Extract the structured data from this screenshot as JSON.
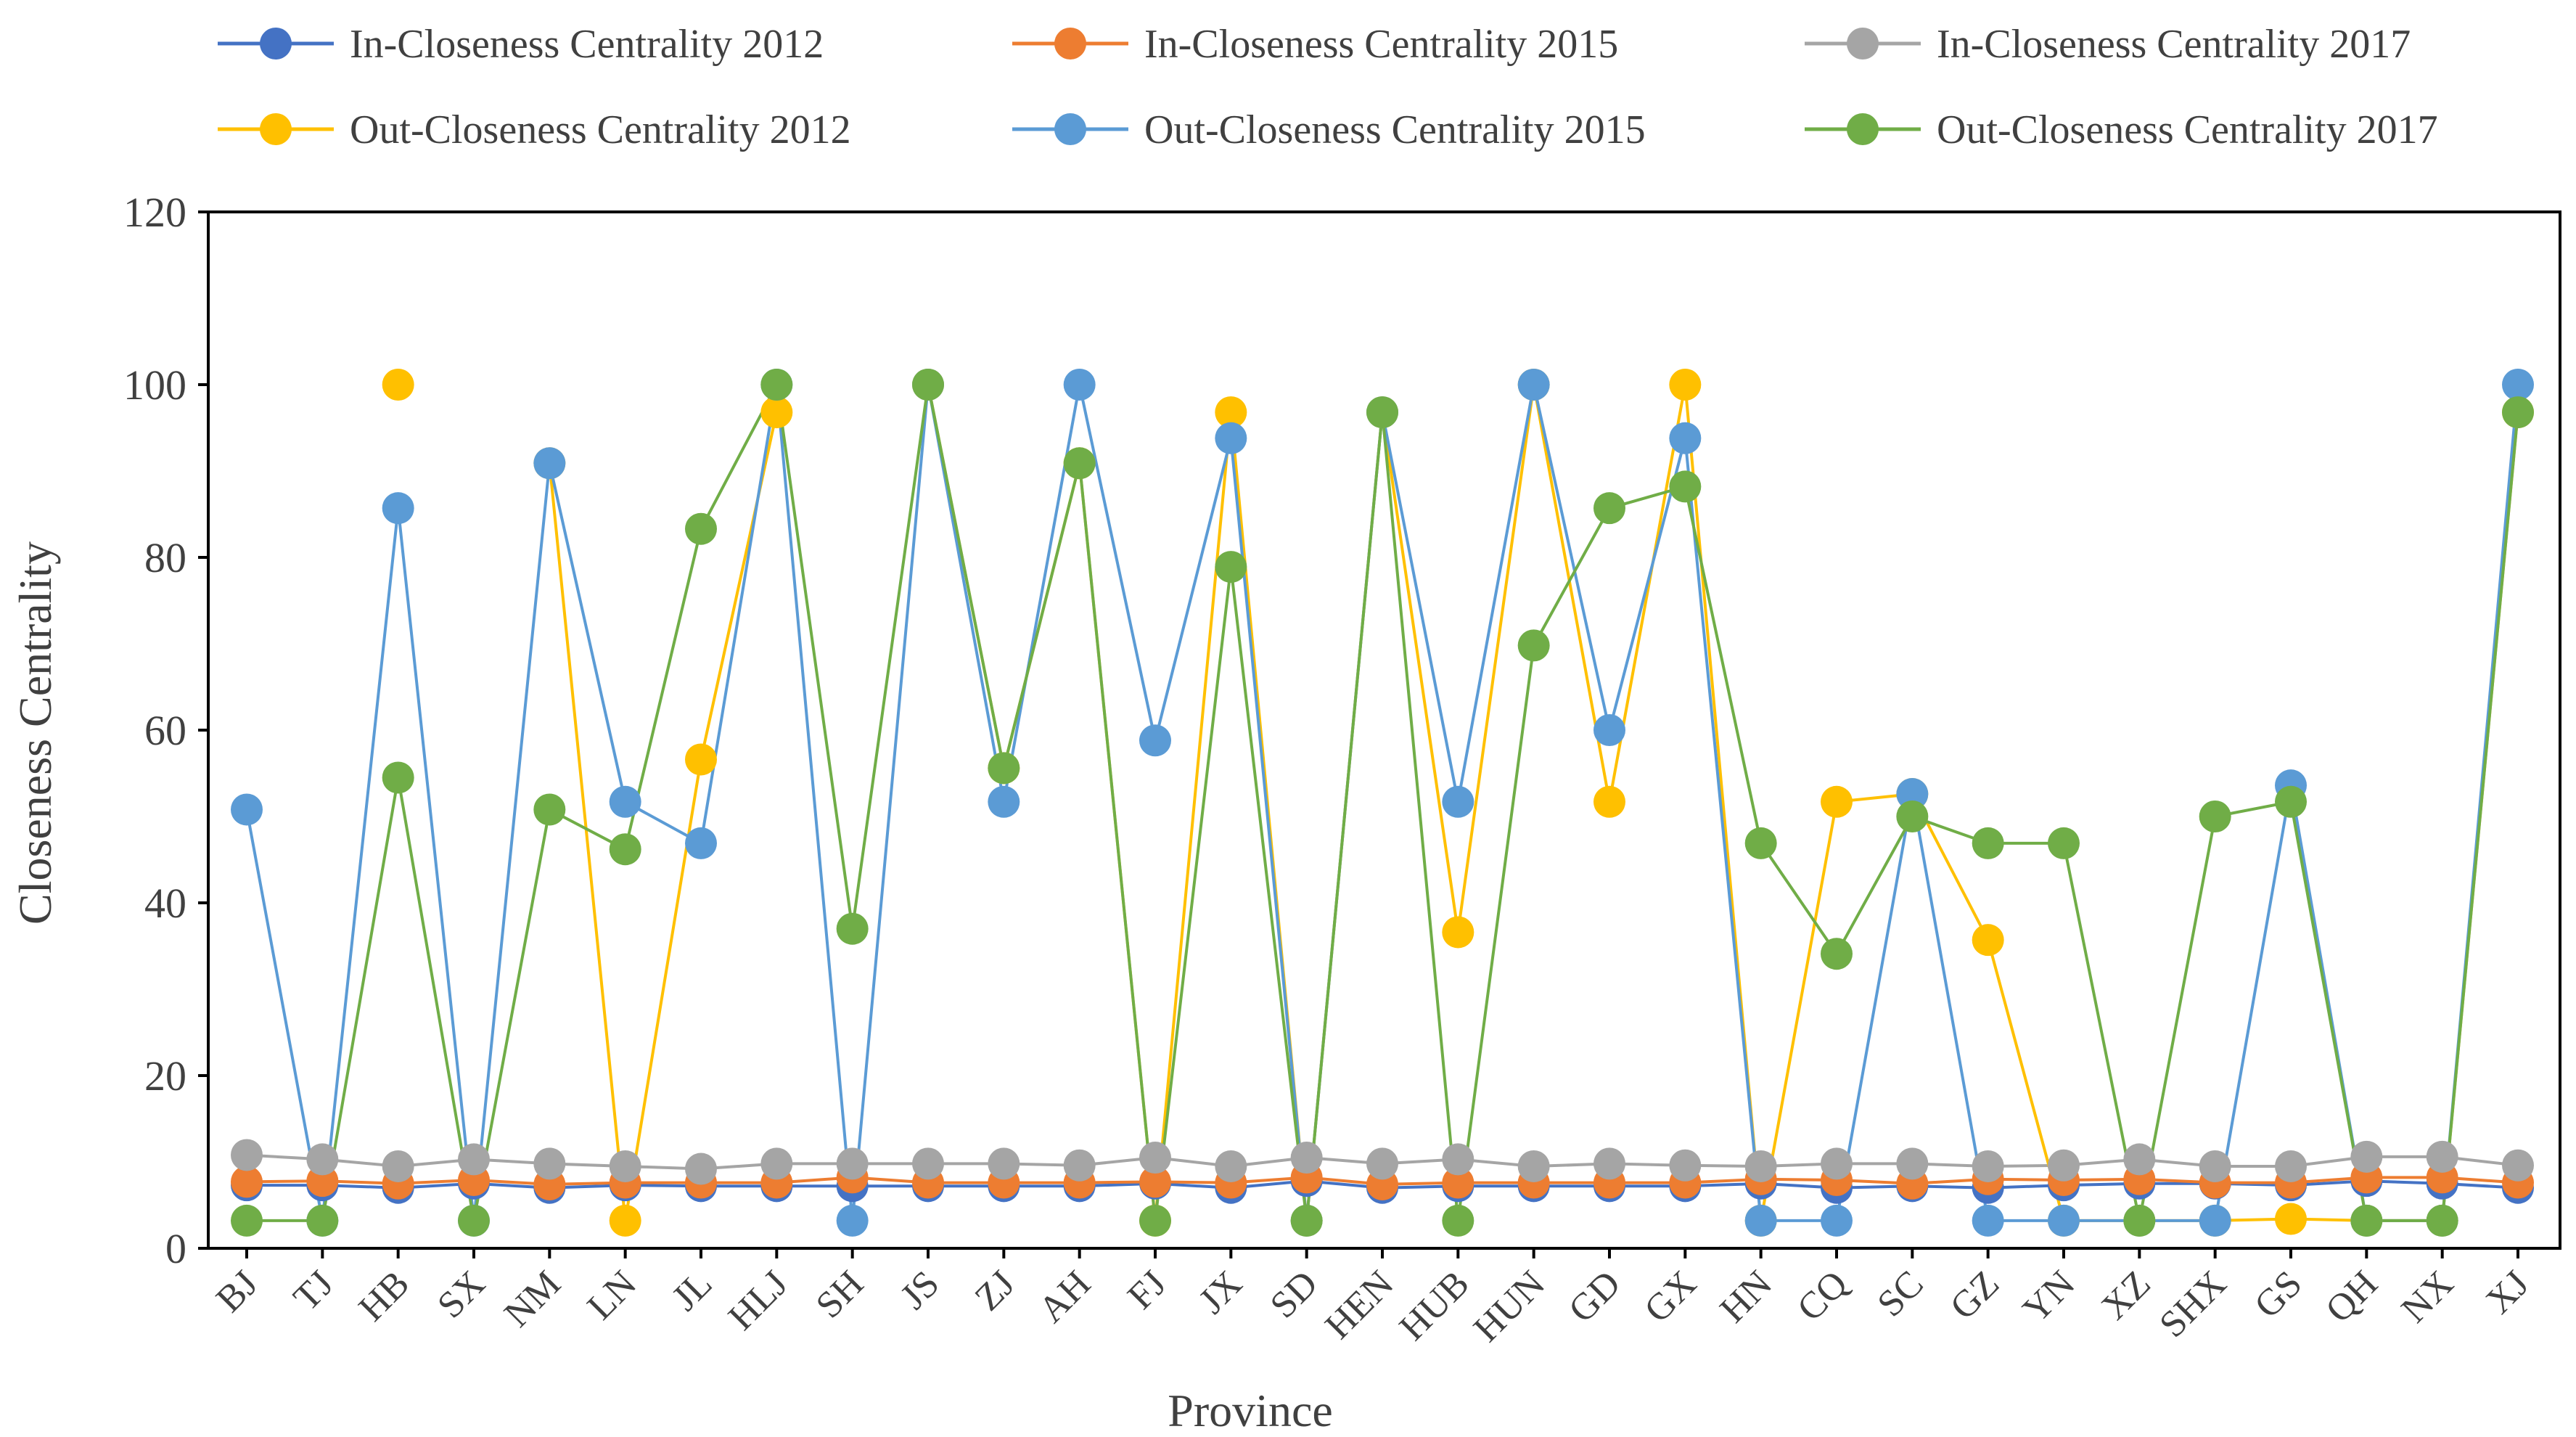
{
  "chart_data": {
    "type": "line",
    "title": "",
    "xlabel": "Province",
    "ylabel": "Closeness Centrality",
    "ylim": [
      0,
      120
    ],
    "yticks": [
      0,
      20,
      40,
      60,
      80,
      100,
      120
    ],
    "grid": false,
    "legend_position": "top",
    "categories": [
      "BJ",
      "TJ",
      "HB",
      "SX",
      "NM",
      "LN",
      "JL",
      "HLJ",
      "SH",
      "JS",
      "ZJ",
      "AH",
      "FJ",
      "JX",
      "SD",
      "HEN",
      "HUB",
      "HUN",
      "GD",
      "GX",
      "HN",
      "CQ",
      "SC",
      "GZ",
      "YN",
      "XZ",
      "SHX",
      "GS",
      "QH",
      "NX",
      "XJ"
    ],
    "series": [
      {
        "name": "In-Closeness Centrality 2012",
        "color": "#4472C4",
        "values": [
          7.3,
          7.3,
          7.0,
          7.5,
          7.0,
          7.3,
          7.2,
          7.2,
          7.2,
          7.2,
          7.2,
          7.2,
          7.5,
          7.0,
          7.8,
          7.0,
          7.2,
          7.2,
          7.2,
          7.2,
          7.5,
          7.0,
          7.2,
          7.0,
          7.3,
          7.5,
          7.5,
          7.3,
          7.8,
          7.5,
          7.0
        ]
      },
      {
        "name": "In-Closeness Centrality 2015",
        "color": "#ED7D31",
        "values": [
          7.7,
          7.8,
          7.5,
          7.9,
          7.4,
          7.6,
          7.6,
          7.6,
          8.2,
          7.6,
          7.6,
          7.6,
          7.7,
          7.6,
          8.2,
          7.4,
          7.6,
          7.6,
          7.6,
          7.6,
          8.0,
          7.9,
          7.5,
          8.0,
          7.9,
          8.0,
          7.6,
          7.6,
          8.2,
          8.2,
          7.6
        ]
      },
      {
        "name": "In-Closeness Centrality 2017",
        "color": "#A5A5A5",
        "values": [
          10.8,
          10.3,
          9.5,
          10.3,
          9.8,
          9.5,
          9.2,
          9.8,
          9.8,
          9.8,
          9.8,
          9.6,
          10.5,
          9.5,
          10.5,
          9.8,
          10.3,
          9.5,
          9.8,
          9.6,
          9.5,
          9.8,
          9.8,
          9.5,
          9.6,
          10.3,
          9.5,
          9.5,
          10.6,
          10.6,
          9.6
        ]
      },
      {
        "name": "Out-Closeness Centrality 2012",
        "color": "#FFC000",
        "values": [
          null,
          null,
          100,
          null,
          90.9,
          3.2,
          56.6,
          96.8,
          null,
          100,
          55.6,
          90.9,
          3.2,
          96.8,
          3.2,
          96.8,
          36.6,
          100,
          51.7,
          100,
          3.2,
          51.7,
          52.6,
          35.7,
          3.2,
          3.2,
          3.2,
          3.4,
          3.2,
          3.2,
          96.8
        ]
      },
      {
        "name": "Out-Closeness Centrality 2015",
        "color": "#5B9BD5",
        "values": [
          50.8,
          3.2,
          85.7,
          3.2,
          90.9,
          51.7,
          46.9,
          100,
          3.2,
          100,
          51.7,
          100,
          58.8,
          93.8,
          3.2,
          96.8,
          51.7,
          100,
          60.0,
          93.8,
          3.2,
          3.2,
          52.6,
          3.2,
          3.2,
          3.2,
          3.2,
          53.6,
          3.2,
          3.2,
          100
        ]
      },
      {
        "name": "Out-Closeness Centrality 2017",
        "color": "#70AD47",
        "values": [
          3.2,
          3.2,
          54.5,
          3.2,
          50.8,
          46.2,
          83.3,
          100,
          37.0,
          100,
          55.6,
          90.9,
          3.2,
          78.9,
          3.2,
          96.8,
          3.2,
          69.8,
          85.7,
          88.2,
          46.9,
          34.1,
          50.0,
          46.9,
          46.9,
          3.2,
          50.0,
          51.7,
          3.2,
          3.2,
          96.8
        ]
      }
    ]
  }
}
